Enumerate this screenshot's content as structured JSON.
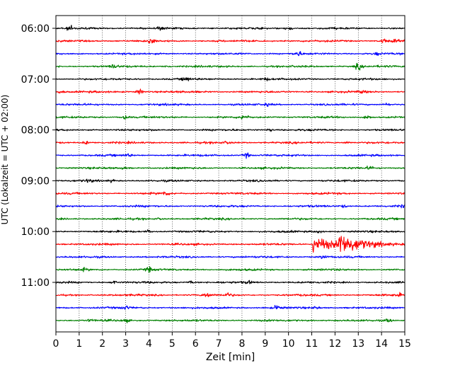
{
  "chart_data": {
    "type": "line",
    "title": "",
    "xlabel": "Zeit  [min]",
    "ylabel": "UTC (Lokalzeit = UTC + 02:00)",
    "xlim": [
      0,
      15
    ],
    "x_ticks": [
      0,
      1,
      2,
      3,
      4,
      5,
      6,
      7,
      8,
      9,
      10,
      11,
      12,
      13,
      14,
      15
    ],
    "x_tick_labels": [
      "0",
      "1",
      "2",
      "3",
      "4",
      "5",
      "6",
      "7",
      "8",
      "9",
      "10",
      "11",
      "12",
      "13",
      "14",
      "15"
    ],
    "y_ticks": [
      {
        "row": 0,
        "label": "06:00"
      },
      {
        "row": 4,
        "label": "07:00"
      },
      {
        "row": 8,
        "label": "08:00"
      },
      {
        "row": 12,
        "label": "09:00"
      },
      {
        "row": 16,
        "label": "10:00"
      },
      {
        "row": 20,
        "label": "11:00"
      }
    ],
    "grid": "vertical dotted",
    "row_minutes": 15,
    "colors": [
      "#000000",
      "#ff0000",
      "#0000ff",
      "#008000"
    ],
    "traces": [
      {
        "start": "06:00",
        "color": "#000000",
        "events": [
          {
            "t": 0.6,
            "amp": 0.7
          },
          {
            "t": 4.5,
            "amp": 0.4
          },
          {
            "t": 10.0,
            "amp": 0.8
          }
        ]
      },
      {
        "start": "06:15",
        "color": "#ff0000",
        "events": [
          {
            "t": 4.1,
            "amp": 1.0
          },
          {
            "t": 14.1,
            "amp": 0.8
          },
          {
            "t": 14.6,
            "amp": 0.5
          }
        ]
      },
      {
        "start": "06:30",
        "color": "#0000ff",
        "events": [
          {
            "t": 10.4,
            "amp": 0.9
          },
          {
            "t": 13.8,
            "amp": 0.4
          }
        ]
      },
      {
        "start": "06:45",
        "color": "#008000",
        "events": [
          {
            "t": 2.5,
            "amp": 0.7
          },
          {
            "t": 4.8,
            "amp": 0.4
          },
          {
            "t": 13.0,
            "amp": 1.1
          }
        ]
      },
      {
        "start": "07:00",
        "color": "#000000",
        "events": [
          {
            "t": 5.6,
            "amp": 0.8
          },
          {
            "t": 9.0,
            "amp": 0.4
          }
        ]
      },
      {
        "start": "07:15",
        "color": "#ff0000",
        "events": [
          {
            "t": 0.2,
            "amp": 0.5
          },
          {
            "t": 3.6,
            "amp": 0.9
          },
          {
            "t": 13.2,
            "amp": 0.4
          }
        ]
      },
      {
        "start": "07:30",
        "color": "#0000ff",
        "events": [
          {
            "t": 9.1,
            "amp": 0.4
          },
          {
            "t": 14.2,
            "amp": 0.6
          }
        ]
      },
      {
        "start": "07:45",
        "color": "#008000",
        "events": [
          {
            "t": 3.0,
            "amp": 0.8
          },
          {
            "t": 8.1,
            "amp": 0.9
          },
          {
            "t": 13.4,
            "amp": 0.8
          }
        ]
      },
      {
        "start": "08:00",
        "color": "#000000",
        "events": [
          {
            "t": 9.2,
            "amp": 0.5
          }
        ]
      },
      {
        "start": "08:15",
        "color": "#ff0000",
        "events": [
          {
            "t": 1.3,
            "amp": 0.6
          },
          {
            "t": 7.4,
            "amp": 0.4
          },
          {
            "t": 12.5,
            "amp": 0.4
          }
        ]
      },
      {
        "start": "08:30",
        "color": "#0000ff",
        "events": [
          {
            "t": 3.1,
            "amp": 0.5
          },
          {
            "t": 8.2,
            "amp": 0.9
          }
        ]
      },
      {
        "start": "08:45",
        "color": "#008000",
        "events": [
          {
            "t": 2.9,
            "amp": 0.4
          },
          {
            "t": 13.5,
            "amp": 0.6
          }
        ]
      },
      {
        "start": "09:00",
        "color": "#000000",
        "events": [
          {
            "t": 1.4,
            "amp": 0.5
          },
          {
            "t": 2.4,
            "amp": 0.4
          }
        ]
      },
      {
        "start": "09:15",
        "color": "#ff0000",
        "events": [
          {
            "t": 4.7,
            "amp": 0.7
          }
        ]
      },
      {
        "start": "09:30",
        "color": "#0000ff",
        "events": [
          {
            "t": 12.4,
            "amp": 0.4
          },
          {
            "t": 15.0,
            "amp": 0.5
          }
        ]
      },
      {
        "start": "09:45",
        "color": "#008000",
        "events": [
          {
            "t": 4.5,
            "amp": 0.3
          }
        ]
      },
      {
        "start": "10:00",
        "color": "#000000",
        "events": [
          {
            "t": 4.0,
            "amp": 0.5
          },
          {
            "t": 11.3,
            "amp": 0.6
          }
        ]
      },
      {
        "start": "10:15",
        "color": "#ff0000",
        "events": [
          {
            "t": 11.1,
            "amp": 3.0
          },
          {
            "t": 12.2,
            "amp": 3.6
          }
        ]
      },
      {
        "start": "10:30",
        "color": "#0000ff",
        "events": [
          {
            "t": 11.5,
            "amp": 0.6
          }
        ]
      },
      {
        "start": "10:45",
        "color": "#008000",
        "events": [
          {
            "t": 4.0,
            "amp": 0.8
          },
          {
            "t": 1.2,
            "amp": 0.4
          }
        ]
      },
      {
        "start": "11:00",
        "color": "#000000",
        "events": [
          {
            "t": 2.5,
            "amp": 0.6
          },
          {
            "t": 5.8,
            "amp": 0.5
          },
          {
            "t": 8.3,
            "amp": 0.5
          }
        ]
      },
      {
        "start": "11:15",
        "color": "#ff0000",
        "events": [
          {
            "t": 6.5,
            "amp": 0.8
          },
          {
            "t": 7.4,
            "amp": 0.6
          },
          {
            "t": 14.7,
            "amp": 0.6
          }
        ]
      },
      {
        "start": "11:30",
        "color": "#0000ff",
        "events": [
          {
            "t": 3.0,
            "amp": 0.5
          },
          {
            "t": 9.5,
            "amp": 0.7
          },
          {
            "t": 11.2,
            "amp": 0.4
          }
        ]
      },
      {
        "start": "11:45",
        "color": "#008000",
        "events": [
          {
            "t": 1.5,
            "amp": 0.4
          },
          {
            "t": 3.0,
            "amp": 0.5
          },
          {
            "t": 14.3,
            "amp": 0.6
          }
        ]
      }
    ]
  }
}
